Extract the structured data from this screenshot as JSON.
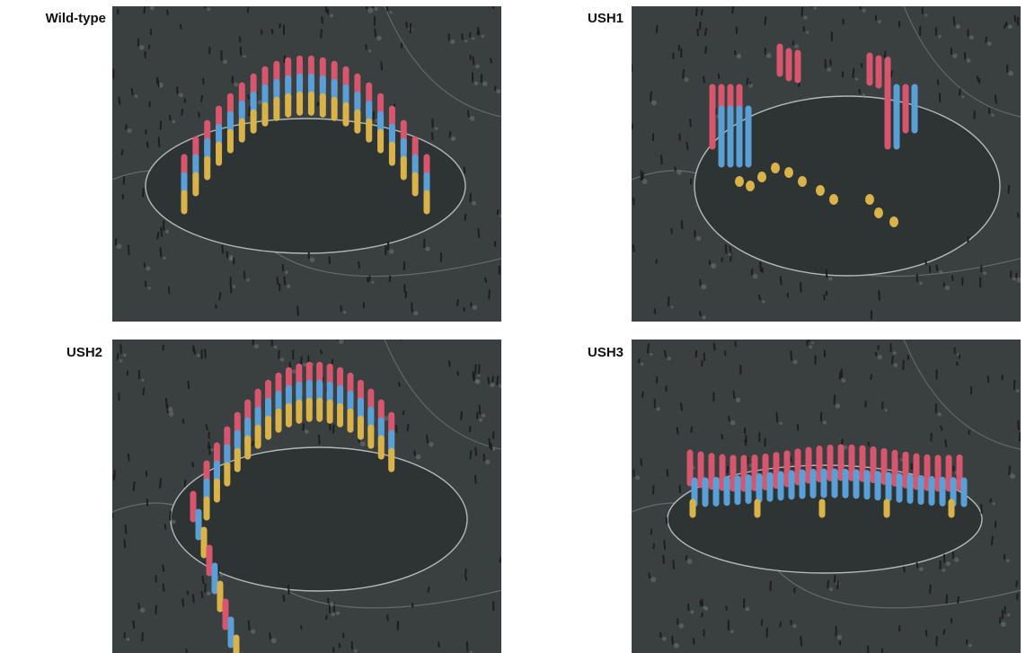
{
  "panels": [
    {
      "label": "Wild-type",
      "variant": "wildtype"
    },
    {
      "label": "USH1",
      "variant": "ush1"
    },
    {
      "label": "USH2",
      "variant": "ush2"
    },
    {
      "label": "USH3",
      "variant": "ush3"
    }
  ],
  "colors": {
    "background": "#3a3f3f",
    "cuticle": "#2e3433",
    "microvilli": "#1c1f1f",
    "stereocilia_tall": "#d6566e",
    "stereocilia_middle": "#5a9fd6",
    "stereocilia_short": "#d9b34a"
  }
}
